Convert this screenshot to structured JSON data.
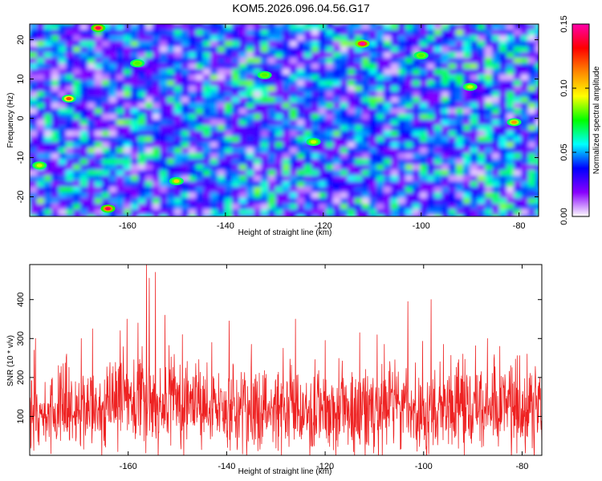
{
  "title": "KOM5.2026.096.04.56.G17",
  "chart_data": [
    {
      "type": "heatmap",
      "xlabel": "Height of straight line (km)",
      "ylabel": "Frequency (Hz)",
      "xlim": [
        -180,
        -76
      ],
      "ylim": [
        -25,
        24
      ],
      "xticks": [
        -160,
        -140,
        -120,
        -100,
        -80
      ],
      "yticks": [
        -20,
        -10,
        0,
        10,
        20
      ],
      "colorbar": {
        "label": "Normalized spectral amplitude",
        "range": [
          0.0,
          0.15
        ],
        "ticks": [
          "0.00",
          "0.05",
          "0.10",
          "0.15"
        ],
        "colors": [
          "#ffffff",
          "#8800ff",
          "#0000ff",
          "#00ffff",
          "#00ff00",
          "#ffff00",
          "#ff8800",
          "#ff0000",
          "#ff00aa"
        ]
      },
      "hotspots": [
        {
          "x": -166,
          "y": 23,
          "v": 0.14
        },
        {
          "x": -112,
          "y": 19,
          "v": 0.15
        },
        {
          "x": -172,
          "y": 5,
          "v": 0.12
        },
        {
          "x": -164,
          "y": -23,
          "v": 0.14
        },
        {
          "x": -122,
          "y": -6,
          "v": 0.09
        },
        {
          "x": -81,
          "y": -1,
          "v": 0.11
        },
        {
          "x": -150,
          "y": -16,
          "v": 0.1
        },
        {
          "x": -158,
          "y": 14,
          "v": 0.08
        },
        {
          "x": -100,
          "y": 16,
          "v": 0.08
        },
        {
          "x": -90,
          "y": 8,
          "v": 0.09
        },
        {
          "x": -132,
          "y": 11,
          "v": 0.08
        },
        {
          "x": -178,
          "y": -12,
          "v": 0.09
        }
      ]
    },
    {
      "type": "line",
      "xlabel": "Height of straight line (km)",
      "ylabel": "SNR (10 * v/v)",
      "xlim": [
        -180,
        -76
      ],
      "ylim": [
        0,
        490
      ],
      "xticks": [
        -160,
        -140,
        -120,
        -100,
        -80
      ],
      "yticks": [
        100,
        200,
        300,
        400
      ],
      "color": "#ee2222",
      "baseline_mean": 115,
      "peaks": [
        {
          "x": -178.8,
          "y": 300
        },
        {
          "x": -172.5,
          "y": 260
        },
        {
          "x": -169.5,
          "y": 300
        },
        {
          "x": -167.2,
          "y": 325
        },
        {
          "x": -161.6,
          "y": 320
        },
        {
          "x": -160.2,
          "y": 350
        },
        {
          "x": -158.0,
          "y": 340
        },
        {
          "x": -156.3,
          "y": 490
        },
        {
          "x": -155.7,
          "y": 455
        },
        {
          "x": -154.5,
          "y": 470
        },
        {
          "x": -152.5,
          "y": 360
        },
        {
          "x": -149.0,
          "y": 310
        },
        {
          "x": -143.0,
          "y": 290
        },
        {
          "x": -139.5,
          "y": 345
        },
        {
          "x": -135.0,
          "y": 285
        },
        {
          "x": -128.5,
          "y": 275
        },
        {
          "x": -126.0,
          "y": 350
        },
        {
          "x": -120.0,
          "y": 295
        },
        {
          "x": -113.0,
          "y": 315
        },
        {
          "x": -108.0,
          "y": 285
        },
        {
          "x": -103.2,
          "y": 395
        },
        {
          "x": -98.5,
          "y": 400
        },
        {
          "x": -96.0,
          "y": 285
        },
        {
          "x": -92.0,
          "y": 260
        },
        {
          "x": -87.0,
          "y": 300
        },
        {
          "x": -84.5,
          "y": 280
        },
        {
          "x": -79.0,
          "y": 260
        }
      ]
    }
  ]
}
